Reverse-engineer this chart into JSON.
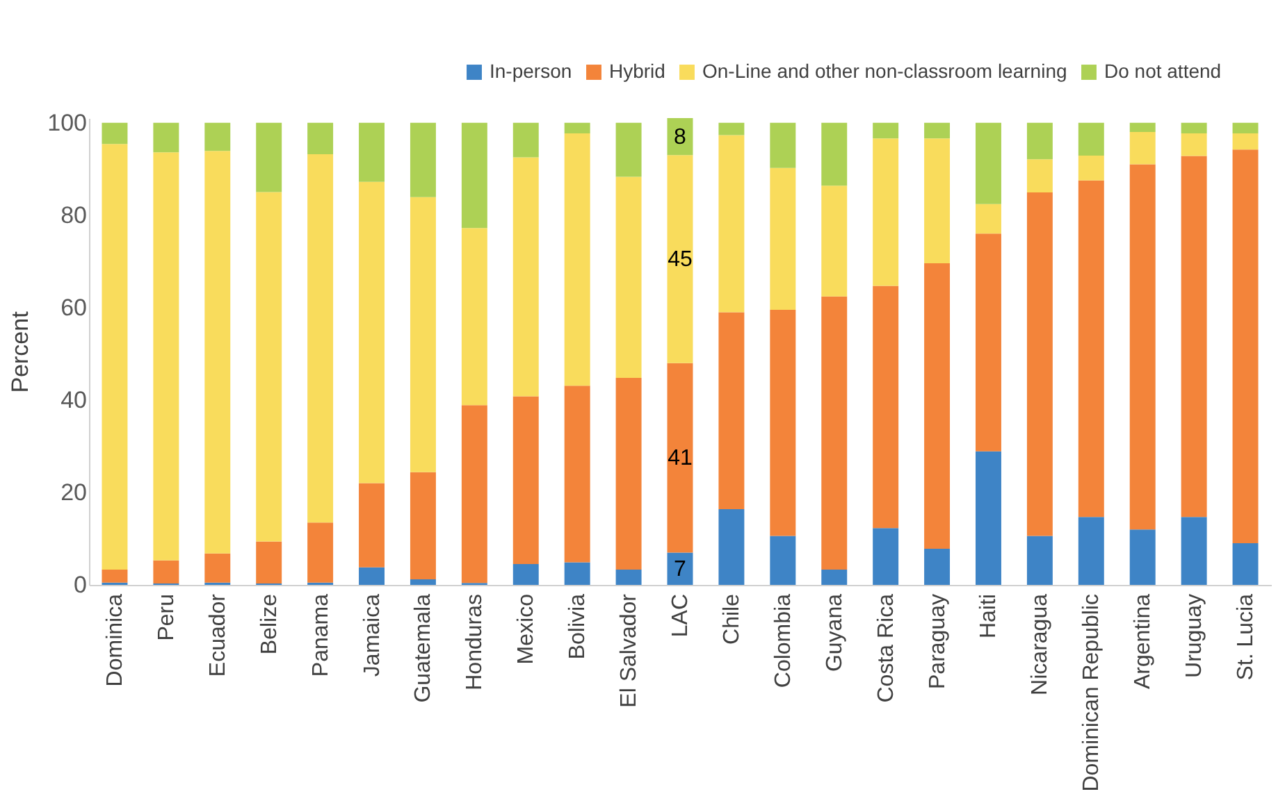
{
  "chart_data": {
    "type": "bar",
    "stacked": true,
    "ylabel": "Percent",
    "categories": [
      "Dominica",
      "Peru",
      "Ecuador",
      "Belize",
      "Panama",
      "Jamaica",
      "Guatemala",
      "Honduras",
      "Mexico",
      "Bolivia",
      "El Salvador",
      "LAC",
      "Chile",
      "Colombia",
      "Guyana",
      "Costa Rica",
      "Paraguay",
      "Haiti",
      "Nicaragua",
      "Dominican Republic",
      "Argentina",
      "Uruguay",
      "St. Lucia"
    ],
    "series": [
      {
        "name": "In-person",
        "color": "#3e84c6",
        "values": [
          0.5,
          0.3,
          0.5,
          0.3,
          0.5,
          3.8,
          1.2,
          0.4,
          4.5,
          4.9,
          3.3,
          7,
          16.4,
          10.6,
          3.3,
          12.3,
          7.8,
          28.9,
          10.6,
          14.7,
          12.0,
          14.7,
          9.0
        ],
        "value_labels": [
          null,
          null,
          null,
          null,
          null,
          null,
          null,
          null,
          null,
          null,
          null,
          "7",
          null,
          null,
          null,
          null,
          null,
          null,
          null,
          null,
          null,
          null,
          null
        ]
      },
      {
        "name": "Hybrid",
        "color": "#f3843a",
        "values": [
          2.8,
          5.0,
          6.3,
          9.1,
          13.0,
          18.2,
          23.2,
          38.5,
          36.3,
          38.2,
          41.5,
          41,
          42.6,
          48.9,
          59.1,
          52.4,
          61.8,
          47.1,
          74.3,
          72.8,
          79.0,
          78.1,
          85.2
        ],
        "value_labels": [
          null,
          null,
          null,
          null,
          null,
          null,
          null,
          null,
          null,
          null,
          null,
          "41",
          null,
          null,
          null,
          null,
          null,
          null,
          null,
          null,
          null,
          null,
          null
        ]
      },
      {
        "name": "On-Line and other non-classroom learning",
        "color": "#f9dc5c",
        "values": [
          92.1,
          88.3,
          87.1,
          75.6,
          79.7,
          65.2,
          59.5,
          38.3,
          51.7,
          54.6,
          43.5,
          45,
          38.3,
          30.7,
          24.0,
          31.9,
          27.0,
          6.4,
          7.2,
          5.4,
          7.0,
          4.9,
          3.5
        ],
        "value_labels": [
          null,
          null,
          null,
          null,
          null,
          null,
          null,
          null,
          null,
          null,
          null,
          "45",
          null,
          null,
          null,
          null,
          null,
          null,
          null,
          null,
          null,
          null,
          null
        ]
      },
      {
        "name": "Do not attend",
        "color": "#add155",
        "values": [
          4.6,
          6.4,
          6.1,
          15.0,
          6.8,
          12.8,
          16.1,
          22.8,
          7.5,
          2.3,
          11.7,
          8,
          2.7,
          9.8,
          13.6,
          3.4,
          3.4,
          17.6,
          7.9,
          7.1,
          2.0,
          2.3,
          2.3
        ],
        "value_labels": [
          null,
          null,
          null,
          null,
          null,
          null,
          null,
          null,
          null,
          null,
          null,
          "8",
          null,
          null,
          null,
          null,
          null,
          null,
          null,
          null,
          null,
          null,
          null
        ]
      }
    ],
    "ylim": [
      0,
      101
    ],
    "yticks": [
      0,
      20,
      40,
      60,
      80,
      100
    ],
    "grid": false,
    "legend": "top right"
  }
}
